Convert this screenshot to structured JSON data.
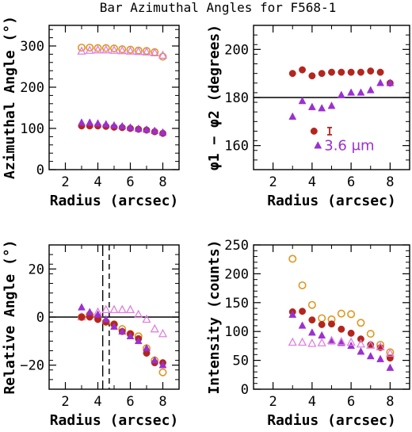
{
  "title": "Bar Azimuthal Angles for F568-1",
  "colors": {
    "red": "#b3261e",
    "orange": "#e0961e",
    "violet": "#9b30d0",
    "pink": "#e080e0"
  },
  "chart_data": [
    {
      "type": "scatter",
      "xlabel": "Radius (arcsec)",
      "ylabel": "Azimuthal Angle (°)",
      "xlim": [
        1,
        9
      ],
      "ylim": [
        0,
        350
      ],
      "xticks": [
        2,
        4,
        6,
        8
      ],
      "yticks": [
        0,
        100,
        200,
        300
      ],
      "series": [
        {
          "marker": "circle-open",
          "color": "orange",
          "points": [
            [
              3,
              296
            ],
            [
              3.5,
              296
            ],
            [
              4,
              295
            ],
            [
              4.5,
              295
            ],
            [
              5,
              294
            ],
            [
              5.5,
              292
            ],
            [
              6,
              291
            ],
            [
              6.5,
              289
            ],
            [
              7,
              288
            ],
            [
              7.5,
              285
            ],
            [
              8,
              274
            ]
          ]
        },
        {
          "marker": "triangle-open",
          "color": "pink",
          "points": [
            [
              3,
              287
            ],
            [
              3.5,
              289
            ],
            [
              4,
              290
            ],
            [
              4.5,
              290
            ],
            [
              5,
              289
            ],
            [
              5.5,
              288
            ],
            [
              6,
              287
            ],
            [
              6.5,
              286
            ],
            [
              7,
              285
            ],
            [
              7.5,
              283
            ],
            [
              8,
              277
            ]
          ]
        },
        {
          "marker": "circle-filled",
          "color": "red",
          "points": [
            [
              3,
              106
            ],
            [
              3.5,
              106
            ],
            [
              4,
              106
            ],
            [
              4.5,
              105
            ],
            [
              5,
              103
            ],
            [
              5.5,
              102
            ],
            [
              6,
              100
            ],
            [
              6.5,
              98
            ],
            [
              7,
              96
            ],
            [
              7.5,
              92
            ],
            [
              8,
              88
            ]
          ]
        },
        {
          "marker": "triangle-filled",
          "color": "violet",
          "points": [
            [
              3,
              114
            ],
            [
              3.5,
              114
            ],
            [
              4,
              112
            ],
            [
              4.5,
              110
            ],
            [
              5,
              107
            ],
            [
              5.5,
              105
            ],
            [
              6,
              102
            ],
            [
              6.5,
              99
            ],
            [
              7,
              97
            ],
            [
              7.5,
              94
            ],
            [
              8,
              90
            ]
          ]
        }
      ]
    },
    {
      "type": "scatter",
      "xlabel": "Radius (arcsec)",
      "ylabel": "φ1 − φ2 (degrees)",
      "xlim": [
        1,
        9
      ],
      "ylim": [
        150,
        210
      ],
      "xticks": [
        2,
        4,
        6,
        8
      ],
      "yticks": [
        160,
        180,
        200
      ],
      "hline": 180,
      "annotation": "3.6 μm",
      "errorbar": {
        "x": 4.9,
        "y": 166,
        "err": 1.5
      },
      "series": [
        {
          "marker": "circle-filled",
          "color": "red",
          "points": [
            [
              3,
              190
            ],
            [
              3.5,
              191.5
            ],
            [
              4,
              189
            ],
            [
              4.5,
              190
            ],
            [
              5,
              190.5
            ],
            [
              5.5,
              190.5
            ],
            [
              6,
              190.5
            ],
            [
              6.5,
              190.5
            ],
            [
              7,
              191
            ],
            [
              7.5,
              190.5
            ],
            [
              8,
              186
            ],
            [
              4.1,
              166
            ]
          ]
        },
        {
          "marker": "triangle-filled",
          "color": "violet",
          "points": [
            [
              3,
              172
            ],
            [
              3.5,
              178.5
            ],
            [
              4,
              176
            ],
            [
              4.5,
              175.5
            ],
            [
              5,
              176.5
            ],
            [
              5.5,
              181
            ],
            [
              6,
              182
            ],
            [
              6.5,
              182
            ],
            [
              7,
              183
            ],
            [
              7.5,
              186
            ],
            [
              8,
              186
            ],
            [
              4.3,
              160
            ]
          ]
        }
      ]
    },
    {
      "type": "scatter",
      "xlabel": "Radius (arcsec)",
      "ylabel": "Relative Angle (°)",
      "xlim": [
        1,
        9
      ],
      "ylim": [
        -30,
        30
      ],
      "xticks": [
        2,
        4,
        6,
        8
      ],
      "yticks": [
        -20,
        0,
        20
      ],
      "hline": 0,
      "vlines": [
        {
          "x": 4.3,
          "style": "longdash"
        },
        {
          "x": 4.7,
          "style": "shortdash"
        }
      ],
      "series": [
        {
          "marker": "circle-open",
          "color": "orange",
          "points": [
            [
              3,
              0
            ],
            [
              3.5,
              1
            ],
            [
              4,
              0
            ],
            [
              4.5,
              -2
            ],
            [
              5,
              -3
            ],
            [
              5.5,
              -5
            ],
            [
              6,
              -7
            ],
            [
              6.5,
              -8
            ],
            [
              7,
              -13
            ],
            [
              7.5,
              -18
            ],
            [
              8,
              -23
            ]
          ]
        },
        {
          "marker": "triangle-open",
          "color": "pink",
          "points": [
            [
              3,
              0
            ],
            [
              3.5,
              1
            ],
            [
              4,
              2
            ],
            [
              4.5,
              3
            ],
            [
              5,
              3
            ],
            [
              5.5,
              3
            ],
            [
              6,
              3
            ],
            [
              6.5,
              1
            ],
            [
              7,
              -1
            ],
            [
              7.5,
              -5
            ],
            [
              8,
              -7
            ]
          ]
        },
        {
          "marker": "circle-filled",
          "color": "red",
          "points": [
            [
              3,
              0
            ],
            [
              3.5,
              0
            ],
            [
              4,
              -1
            ],
            [
              4.5,
              -2
            ],
            [
              5,
              -3
            ],
            [
              5.5,
              -6
            ],
            [
              6,
              -7
            ],
            [
              6.5,
              -9
            ],
            [
              7,
              -15
            ],
            [
              7.5,
              -19
            ],
            [
              8,
              -19
            ]
          ]
        },
        {
          "marker": "triangle-filled",
          "color": "violet",
          "points": [
            [
              3,
              4
            ],
            [
              3.5,
              2
            ],
            [
              4,
              1
            ],
            [
              4.5,
              -1
            ],
            [
              5,
              -4
            ],
            [
              5.5,
              -6
            ],
            [
              6,
              -8
            ],
            [
              6.5,
              -10
            ],
            [
              7,
              -13
            ],
            [
              7.5,
              -18
            ],
            [
              8,
              -20
            ]
          ]
        }
      ]
    },
    {
      "type": "scatter",
      "xlabel": "Radius (arcsec)",
      "ylabel": "Intensity (counts)",
      "xlim": [
        1,
        9
      ],
      "ylim": [
        0,
        250
      ],
      "xticks": [
        2,
        4,
        6,
        8
      ],
      "yticks": [
        0,
        50,
        100,
        150,
        200,
        250
      ],
      "series": [
        {
          "marker": "circle-open",
          "color": "orange",
          "points": [
            [
              3,
              226
            ],
            [
              3.5,
              180
            ],
            [
              4,
              146
            ],
            [
              4.5,
              123
            ],
            [
              5,
              121
            ],
            [
              5.5,
              131
            ],
            [
              6,
              130
            ],
            [
              6.5,
              115
            ],
            [
              7,
              96
            ],
            [
              7.5,
              77
            ],
            [
              8,
              64
            ]
          ]
        },
        {
          "marker": "circle-filled",
          "color": "red",
          "points": [
            [
              3,
              134
            ],
            [
              3.5,
              135
            ],
            [
              4,
              120
            ],
            [
              4.5,
              112
            ],
            [
              5,
              113
            ],
            [
              5.5,
              104
            ],
            [
              6,
              97
            ],
            [
              6.5,
              87
            ],
            [
              7,
              77
            ],
            [
              7.5,
              72
            ],
            [
              8,
              54
            ]
          ]
        },
        {
          "marker": "triangle-filled",
          "color": "violet",
          "points": [
            [
              3,
              129
            ],
            [
              3.5,
              110
            ],
            [
              4,
              98
            ],
            [
              4.5,
              93
            ],
            [
              5,
              83
            ],
            [
              5.5,
              80
            ],
            [
              6,
              75
            ],
            [
              6.5,
              65
            ],
            [
              7,
              57
            ],
            [
              7.5,
              52
            ],
            [
              8,
              37
            ]
          ]
        },
        {
          "marker": "triangle-open",
          "color": "pink",
          "points": [
            [
              3,
              81
            ],
            [
              3.5,
              81
            ],
            [
              4,
              79
            ],
            [
              4.5,
              80
            ],
            [
              5,
              84
            ],
            [
              5.5,
              82
            ],
            [
              6,
              81
            ],
            [
              6.5,
              78
            ],
            [
              7,
              76
            ],
            [
              7.5,
              73
            ],
            [
              8,
              62
            ]
          ]
        }
      ]
    }
  ]
}
